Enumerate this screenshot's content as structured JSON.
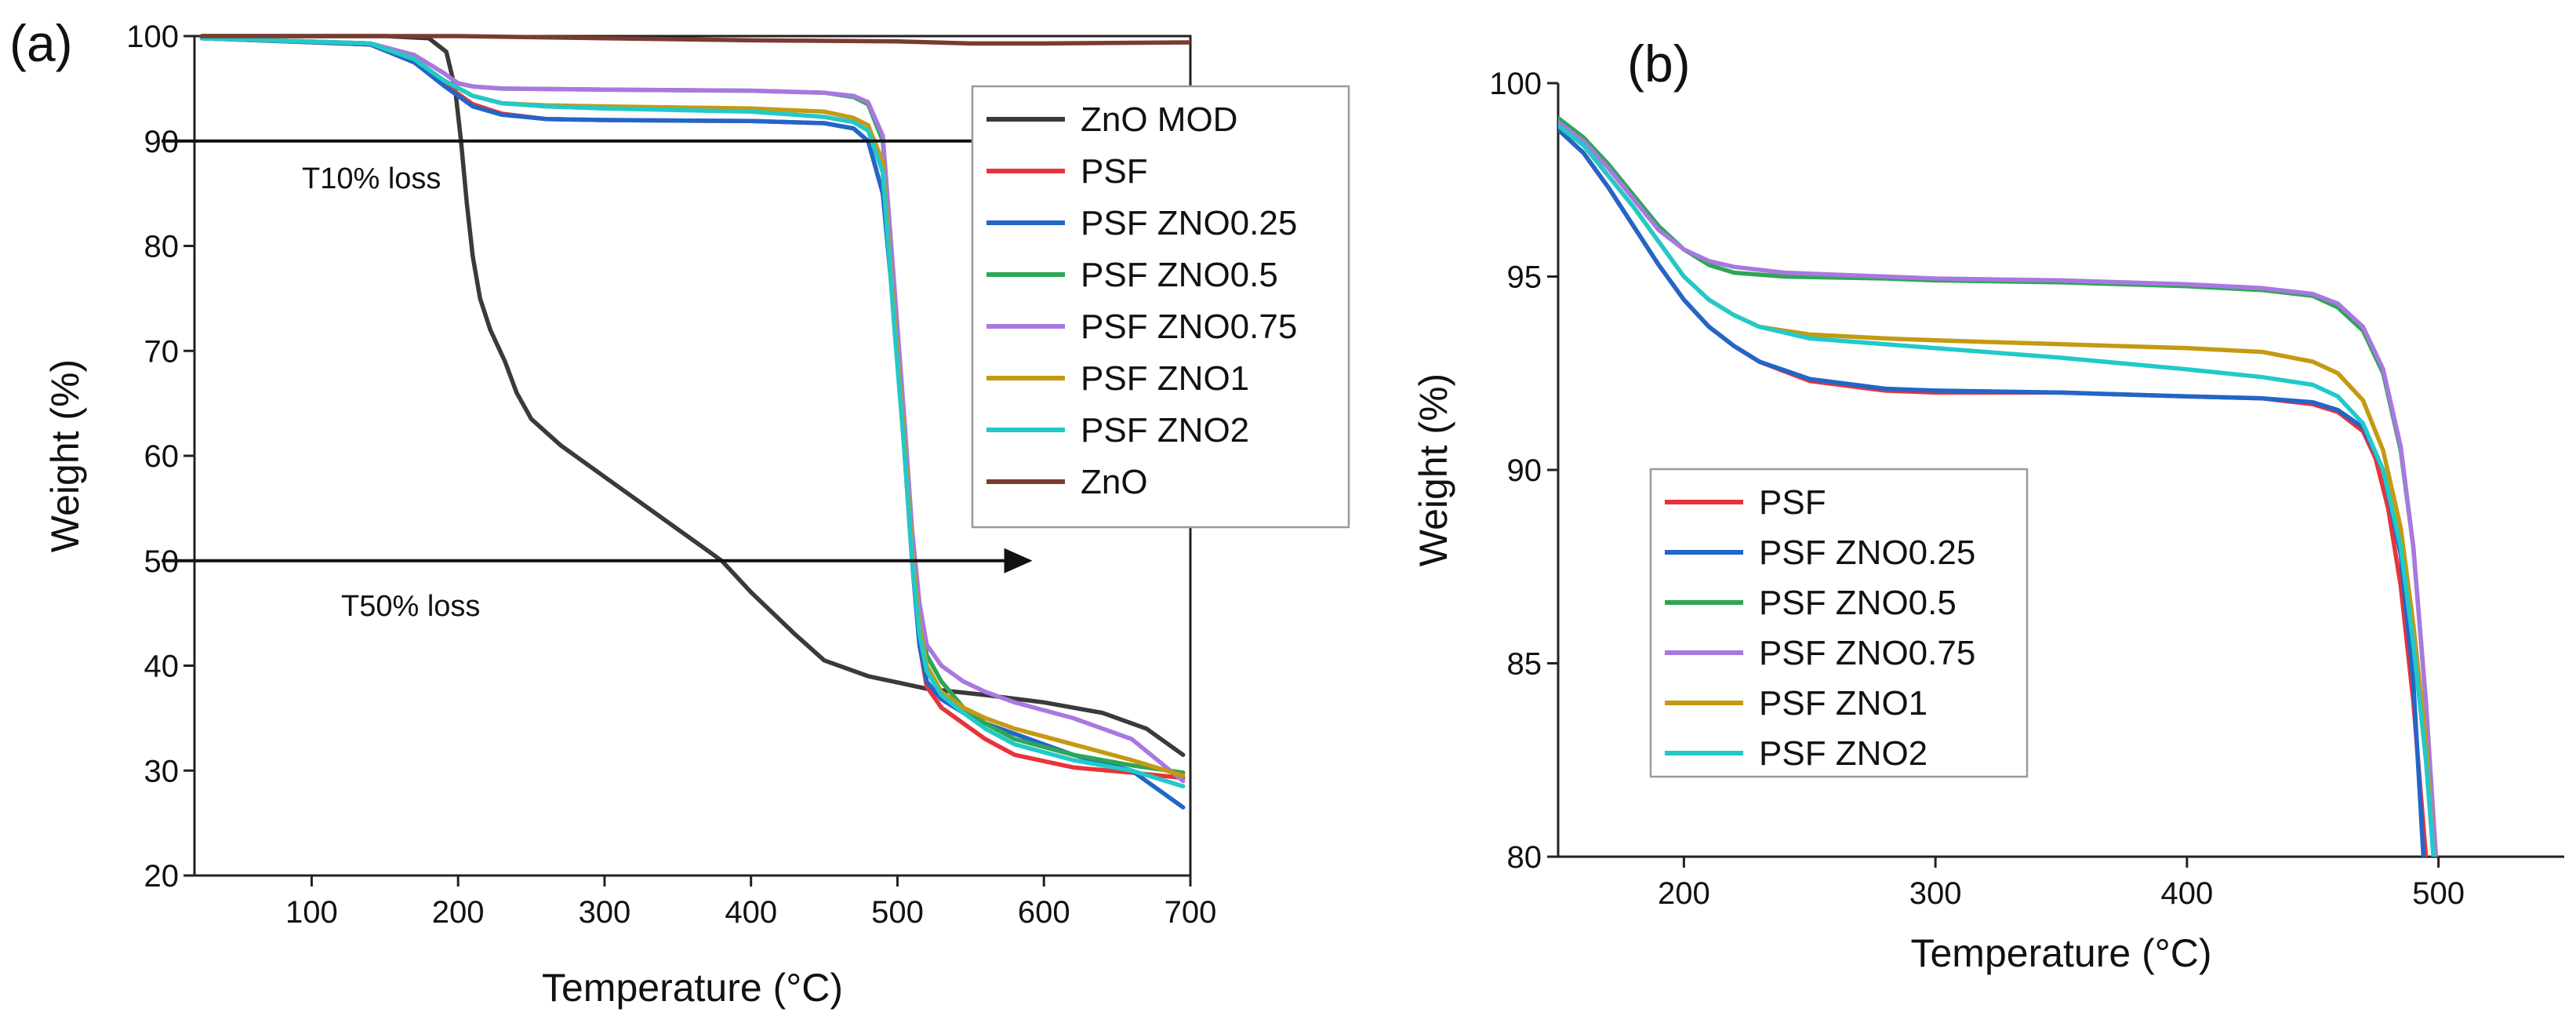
{
  "colors": {
    "ZnO MOD": "#3a3a3a",
    "PSF": "#e8333a",
    "PSF ZNO0.25": "#2166c8",
    "PSF ZNO0.5": "#2ea655",
    "PSF ZNO0.75": "#a878e0",
    "PSF ZNO1": "#c39a12",
    "PSF ZNO2": "#22c9c9",
    "ZnO": "#7a3b32",
    "arrow": "#111111"
  },
  "chart_data": [
    {
      "panel": "(a)",
      "type": "line",
      "xlabel": "Temperature (°C)",
      "ylabel": "Weight (%)",
      "xlim": [
        20,
        700
      ],
      "ylim": [
        20,
        100
      ],
      "xticks": [
        100,
        200,
        300,
        400,
        500,
        600,
        700
      ],
      "yticks": [
        20,
        30,
        40,
        50,
        60,
        70,
        80,
        90,
        100
      ],
      "legend": [
        "ZnO MOD",
        "PSF",
        "PSF ZNO0.25",
        "PSF ZNO0.5",
        "PSF ZNO0.75",
        "PSF ZNO1",
        "PSF ZNO2",
        "ZnO"
      ],
      "legend_position": "top-right",
      "annotations": [
        {
          "text": "T10% loss",
          "x": 35,
          "y": 90,
          "x_end": 570
        },
        {
          "text": "T50% loss",
          "x": 35,
          "y": 50,
          "x_end": 590
        }
      ],
      "series": [
        {
          "name": "ZnO MOD",
          "x": [
            25,
            150,
            180,
            192,
            198,
            202,
            206,
            210,
            215,
            222,
            232,
            240,
            250,
            270,
            300,
            350,
            380,
            400,
            430,
            450,
            480,
            520,
            560,
            600,
            640,
            670,
            695
          ],
          "y": [
            100,
            100,
            99.8,
            98.5,
            95,
            90,
            84,
            79,
            75,
            72,
            69,
            66,
            63.5,
            61,
            58,
            53,
            50,
            47,
            43,
            40.5,
            39,
            37.8,
            37.2,
            36.5,
            35.5,
            34,
            31.5
          ]
        },
        {
          "name": "PSF",
          "x": [
            25,
            140,
            170,
            190,
            210,
            230,
            260,
            300,
            400,
            450,
            470,
            480,
            490,
            500,
            505,
            510,
            515,
            520,
            530,
            545,
            560,
            580,
            620,
            660,
            695
          ],
          "y": [
            99.8,
            99.2,
            97.5,
            95.5,
            93.5,
            92.6,
            92.1,
            92.0,
            91.9,
            91.7,
            91.2,
            90,
            85,
            70,
            60,
            50,
            42,
            38,
            36,
            34.5,
            33,
            31.5,
            30.3,
            29.8,
            29.3
          ]
        },
        {
          "name": "PSF ZNO0.25",
          "x": [
            25,
            140,
            170,
            190,
            210,
            230,
            260,
            300,
            400,
            450,
            470,
            480,
            490,
            500,
            505,
            510,
            515,
            520,
            530,
            545,
            560,
            580,
            620,
            660,
            680,
            695
          ],
          "y": [
            99.8,
            99.2,
            97.5,
            95.3,
            93.3,
            92.5,
            92.1,
            92.0,
            91.9,
            91.7,
            91.2,
            90,
            85,
            70,
            60,
            50,
            42,
            38.5,
            36.8,
            35.5,
            34.5,
            33.5,
            31.5,
            30,
            28,
            26.5
          ]
        },
        {
          "name": "PSF ZNO0.5",
          "x": [
            25,
            140,
            170,
            190,
            200,
            210,
            230,
            300,
            400,
            450,
            470,
            480,
            490,
            498,
            505,
            510,
            515,
            520,
            530,
            545,
            560,
            580,
            620,
            660,
            695
          ],
          "y": [
            99.8,
            99.3,
            98.2,
            96.5,
            95.5,
            95.2,
            95.0,
            94.9,
            94.8,
            94.6,
            94.2,
            93.5,
            90,
            75,
            62,
            52,
            45,
            41,
            38.5,
            36,
            34.5,
            33,
            31.5,
            30.5,
            29.8
          ]
        },
        {
          "name": "PSF ZNO0.75",
          "x": [
            25,
            140,
            170,
            190,
            200,
            210,
            230,
            300,
            400,
            450,
            470,
            480,
            490,
            498,
            505,
            510,
            515,
            520,
            530,
            545,
            560,
            580,
            620,
            660,
            695
          ],
          "y": [
            99.8,
            99.3,
            98.2,
            96.5,
            95.5,
            95.2,
            95.0,
            94.9,
            94.8,
            94.6,
            94.3,
            93.7,
            90.5,
            76,
            63,
            53,
            46,
            42,
            40,
            38.5,
            37.5,
            36.5,
            35,
            33,
            29
          ]
        },
        {
          "name": "PSF ZNO1",
          "x": [
            25,
            140,
            170,
            190,
            210,
            230,
            260,
            300,
            400,
            450,
            470,
            480,
            490,
            498,
            505,
            510,
            515,
            520,
            530,
            545,
            560,
            580,
            620,
            660,
            695
          ],
          "y": [
            99.8,
            99.3,
            97.8,
            95.8,
            94.3,
            93.6,
            93.4,
            93.3,
            93.1,
            92.8,
            92.2,
            91.5,
            88,
            73,
            61,
            51,
            44,
            40,
            37.5,
            36,
            35,
            34,
            32.5,
            31,
            29.5
          ]
        },
        {
          "name": "PSF ZNO2",
          "x": [
            25,
            140,
            170,
            190,
            210,
            230,
            260,
            300,
            400,
            450,
            470,
            480,
            490,
            498,
            505,
            510,
            515,
            520,
            530,
            545,
            560,
            580,
            620,
            660,
            695
          ],
          "y": [
            99.8,
            99.3,
            97.8,
            95.8,
            94.3,
            93.6,
            93.3,
            93.1,
            92.8,
            92.3,
            91.8,
            91,
            87,
            72,
            60,
            50,
            43,
            39.5,
            37.2,
            35.5,
            34,
            32.5,
            31,
            30,
            28.5
          ]
        },
        {
          "name": "ZnO",
          "x": [
            25,
            200,
            300,
            400,
            500,
            550,
            600,
            700
          ],
          "y": [
            100,
            100,
            99.8,
            99.6,
            99.5,
            99.3,
            99.3,
            99.4
          ]
        }
      ]
    },
    {
      "panel": "(b)",
      "type": "line",
      "xlabel": "Temperature (°C)",
      "ylabel": "Weight (%)",
      "xlim": [
        150,
        550
      ],
      "ylim": [
        80,
        100
      ],
      "xticks": [
        200,
        300,
        400,
        500
      ],
      "yticks": [
        80,
        85,
        90,
        95,
        100
      ],
      "legend": [
        "PSF",
        "PSF ZNO0.25",
        "PSF ZNO0.5",
        "PSF ZNO0.75",
        "PSF ZNO1",
        "PSF ZNO2"
      ],
      "legend_position": "lower-left",
      "series": [
        {
          "name": "PSF",
          "x": [
            150,
            160,
            170,
            180,
            190,
            200,
            210,
            220,
            230,
            250,
            280,
            300,
            350,
            400,
            430,
            450,
            460,
            470,
            475,
            480,
            485,
            490,
            495
          ],
          "y": [
            98.8,
            98.2,
            97.3,
            96.3,
            95.3,
            94.4,
            93.7,
            93.2,
            92.8,
            92.3,
            92.05,
            92.0,
            92.0,
            91.9,
            91.85,
            91.7,
            91.5,
            91.0,
            90.3,
            89.0,
            87.0,
            84.0,
            80
          ]
        },
        {
          "name": "PSF ZNO0.25",
          "x": [
            150,
            160,
            170,
            180,
            190,
            200,
            210,
            220,
            230,
            250,
            280,
            300,
            350,
            400,
            430,
            450,
            460,
            470,
            478,
            485,
            490,
            494
          ],
          "y": [
            98.8,
            98.2,
            97.3,
            96.3,
            95.3,
            94.4,
            93.7,
            93.2,
            92.8,
            92.35,
            92.1,
            92.05,
            92.0,
            91.9,
            91.85,
            91.75,
            91.55,
            91.1,
            90.0,
            87.8,
            84.5,
            80
          ]
        },
        {
          "name": "PSF ZNO0.5",
          "x": [
            150,
            160,
            170,
            180,
            190,
            200,
            210,
            220,
            240,
            280,
            300,
            350,
            400,
            430,
            450,
            460,
            470,
            478,
            485,
            490,
            495,
            499
          ],
          "y": [
            99.1,
            98.6,
            97.9,
            97.1,
            96.3,
            95.7,
            95.3,
            95.1,
            95.0,
            94.95,
            94.9,
            94.85,
            94.75,
            94.65,
            94.5,
            94.2,
            93.6,
            92.5,
            90.5,
            88.0,
            84.0,
            80
          ]
        },
        {
          "name": "PSF ZNO0.75",
          "x": [
            150,
            160,
            170,
            180,
            190,
            200,
            210,
            220,
            240,
            280,
            300,
            350,
            400,
            430,
            450,
            460,
            470,
            478,
            485,
            490,
            495,
            499
          ],
          "y": [
            99.0,
            98.5,
            97.8,
            97.0,
            96.2,
            95.7,
            95.4,
            95.25,
            95.1,
            95.0,
            94.95,
            94.9,
            94.8,
            94.7,
            94.55,
            94.3,
            93.7,
            92.6,
            90.6,
            88.0,
            84.0,
            80
          ]
        },
        {
          "name": "PSF ZNO1",
          "x": [
            150,
            160,
            170,
            180,
            190,
            200,
            210,
            220,
            230,
            250,
            280,
            300,
            350,
            400,
            430,
            450,
            460,
            470,
            478,
            485,
            490,
            495,
            498
          ],
          "y": [
            98.9,
            98.4,
            97.6,
            96.8,
            95.9,
            95.0,
            94.4,
            94.0,
            93.7,
            93.5,
            93.4,
            93.35,
            93.25,
            93.15,
            93.05,
            92.8,
            92.5,
            91.8,
            90.5,
            88.5,
            86.0,
            83.0,
            80
          ]
        },
        {
          "name": "PSF ZNO2",
          "x": [
            150,
            160,
            170,
            180,
            190,
            200,
            210,
            220,
            230,
            250,
            280,
            300,
            350,
            400,
            430,
            450,
            460,
            470,
            478,
            485,
            490,
            495,
            498
          ],
          "y": [
            98.9,
            98.4,
            97.6,
            96.8,
            95.9,
            95.0,
            94.4,
            94.0,
            93.7,
            93.4,
            93.25,
            93.15,
            92.9,
            92.6,
            92.4,
            92.2,
            91.9,
            91.2,
            90.0,
            88.0,
            85.5,
            82.5,
            80
          ]
        }
      ]
    }
  ]
}
